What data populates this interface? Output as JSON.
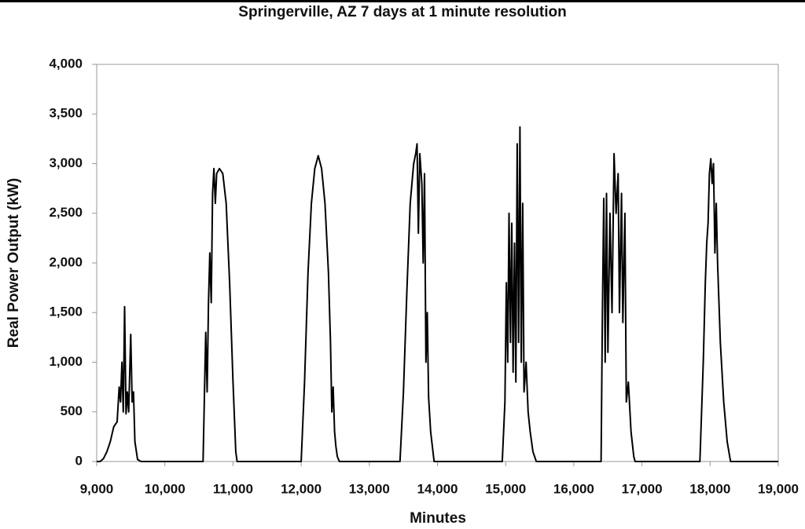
{
  "chart_data": {
    "type": "line",
    "title": "Springerville, AZ 7 days at 1 minute resolution",
    "x_label": "Minutes",
    "y_label": "Real Power Output (kW)",
    "color": "#000000",
    "grid": false,
    "xlim": [
      9000,
      19000
    ],
    "ylim": [
      0,
      4000
    ],
    "xticks": [
      {
        "value": 9000,
        "label": "9,000"
      },
      {
        "value": 10000,
        "label": "10,000"
      },
      {
        "value": 11000,
        "label": "11,000"
      },
      {
        "value": 12000,
        "label": "12,000"
      },
      {
        "value": 13000,
        "label": "13,000"
      },
      {
        "value": 14000,
        "label": "14,000"
      },
      {
        "value": 15000,
        "label": "15,000"
      },
      {
        "value": 16000,
        "label": "16,000"
      },
      {
        "value": 17000,
        "label": "17,000"
      },
      {
        "value": 18000,
        "label": "18,000"
      },
      {
        "value": 19000,
        "label": "19,000"
      }
    ],
    "yticks": [
      0,
      500,
      {
        "value": 1000,
        "label": "1,000"
      },
      {
        "value": 1500,
        "label": "1,500"
      },
      {
        "value": 2000,
        "label": "2,000"
      },
      {
        "value": 2500,
        "label": "2,500"
      },
      {
        "value": 3000,
        "label": "3,000"
      },
      {
        "value": 3500,
        "label": "3,500"
      },
      {
        "value": 4000,
        "label": "4,000"
      }
    ],
    "x": [
      9000,
      9050,
      9100,
      9150,
      9200,
      9250,
      9300,
      9330,
      9350,
      9370,
      9390,
      9410,
      9430,
      9450,
      9470,
      9500,
      9520,
      9540,
      9560,
      9600,
      9650,
      10560,
      10600,
      10620,
      10640,
      10660,
      10680,
      10700,
      10720,
      10740,
      10760,
      10800,
      10850,
      10900,
      10950,
      11000,
      11040,
      11060,
      12000,
      12050,
      12100,
      12150,
      12200,
      12250,
      12300,
      12350,
      12400,
      12430,
      12450,
      12470,
      12490,
      12510,
      12530,
      12560,
      13450,
      13500,
      13550,
      13600,
      13650,
      13680,
      13700,
      13720,
      13740,
      13770,
      13790,
      13810,
      13830,
      13850,
      13870,
      13900,
      13950,
      14950,
      14990,
      15010,
      15030,
      15050,
      15070,
      15090,
      15110,
      15130,
      15150,
      15170,
      15190,
      15210,
      15230,
      15250,
      15270,
      15300,
      15330,
      15360,
      15400,
      15450,
      16400,
      16420,
      16440,
      16460,
      16480,
      16500,
      16530,
      16560,
      16590,
      16620,
      16650,
      16670,
      16700,
      16720,
      16750,
      16770,
      16800,
      16840,
      16880,
      16900,
      17850,
      17900,
      17930,
      17950,
      17970,
      17990,
      18010,
      18030,
      18050,
      18070,
      18090,
      18110,
      18150,
      18200,
      18250,
      18300,
      19000
    ],
    "values": [
      0,
      0,
      30,
      100,
      200,
      350,
      400,
      750,
      600,
      1000,
      500,
      1560,
      480,
      700,
      500,
      1280,
      600,
      700,
      200,
      20,
      0,
      0,
      1300,
      700,
      1600,
      2100,
      1600,
      2700,
      2950,
      2600,
      2900,
      2950,
      2900,
      2600,
      1800,
      800,
      100,
      0,
      0,
      800,
      1900,
      2600,
      2950,
      3080,
      2950,
      2600,
      1900,
      1200,
      500,
      750,
      300,
      150,
      50,
      0,
      0,
      700,
      1700,
      2600,
      3000,
      3100,
      3200,
      2300,
      3100,
      2800,
      2000,
      2900,
      1000,
      1500,
      650,
      300,
      0,
      0,
      600,
      1800,
      1000,
      2500,
      1200,
      2400,
      900,
      2200,
      800,
      3200,
      1200,
      3370,
      1000,
      2600,
      700,
      1000,
      500,
      300,
      100,
      0,
      0,
      1500,
      2650,
      1000,
      2700,
      1100,
      2500,
      1500,
      3100,
      2500,
      2900,
      1500,
      2700,
      1400,
      2500,
      600,
      800,
      300,
      50,
      0,
      0,
      1000,
      1800,
      2200,
      2400,
      2900,
      3050,
      2800,
      3000,
      2100,
      2600,
      2000,
      1200,
      600,
      200,
      0,
      0
    ]
  }
}
